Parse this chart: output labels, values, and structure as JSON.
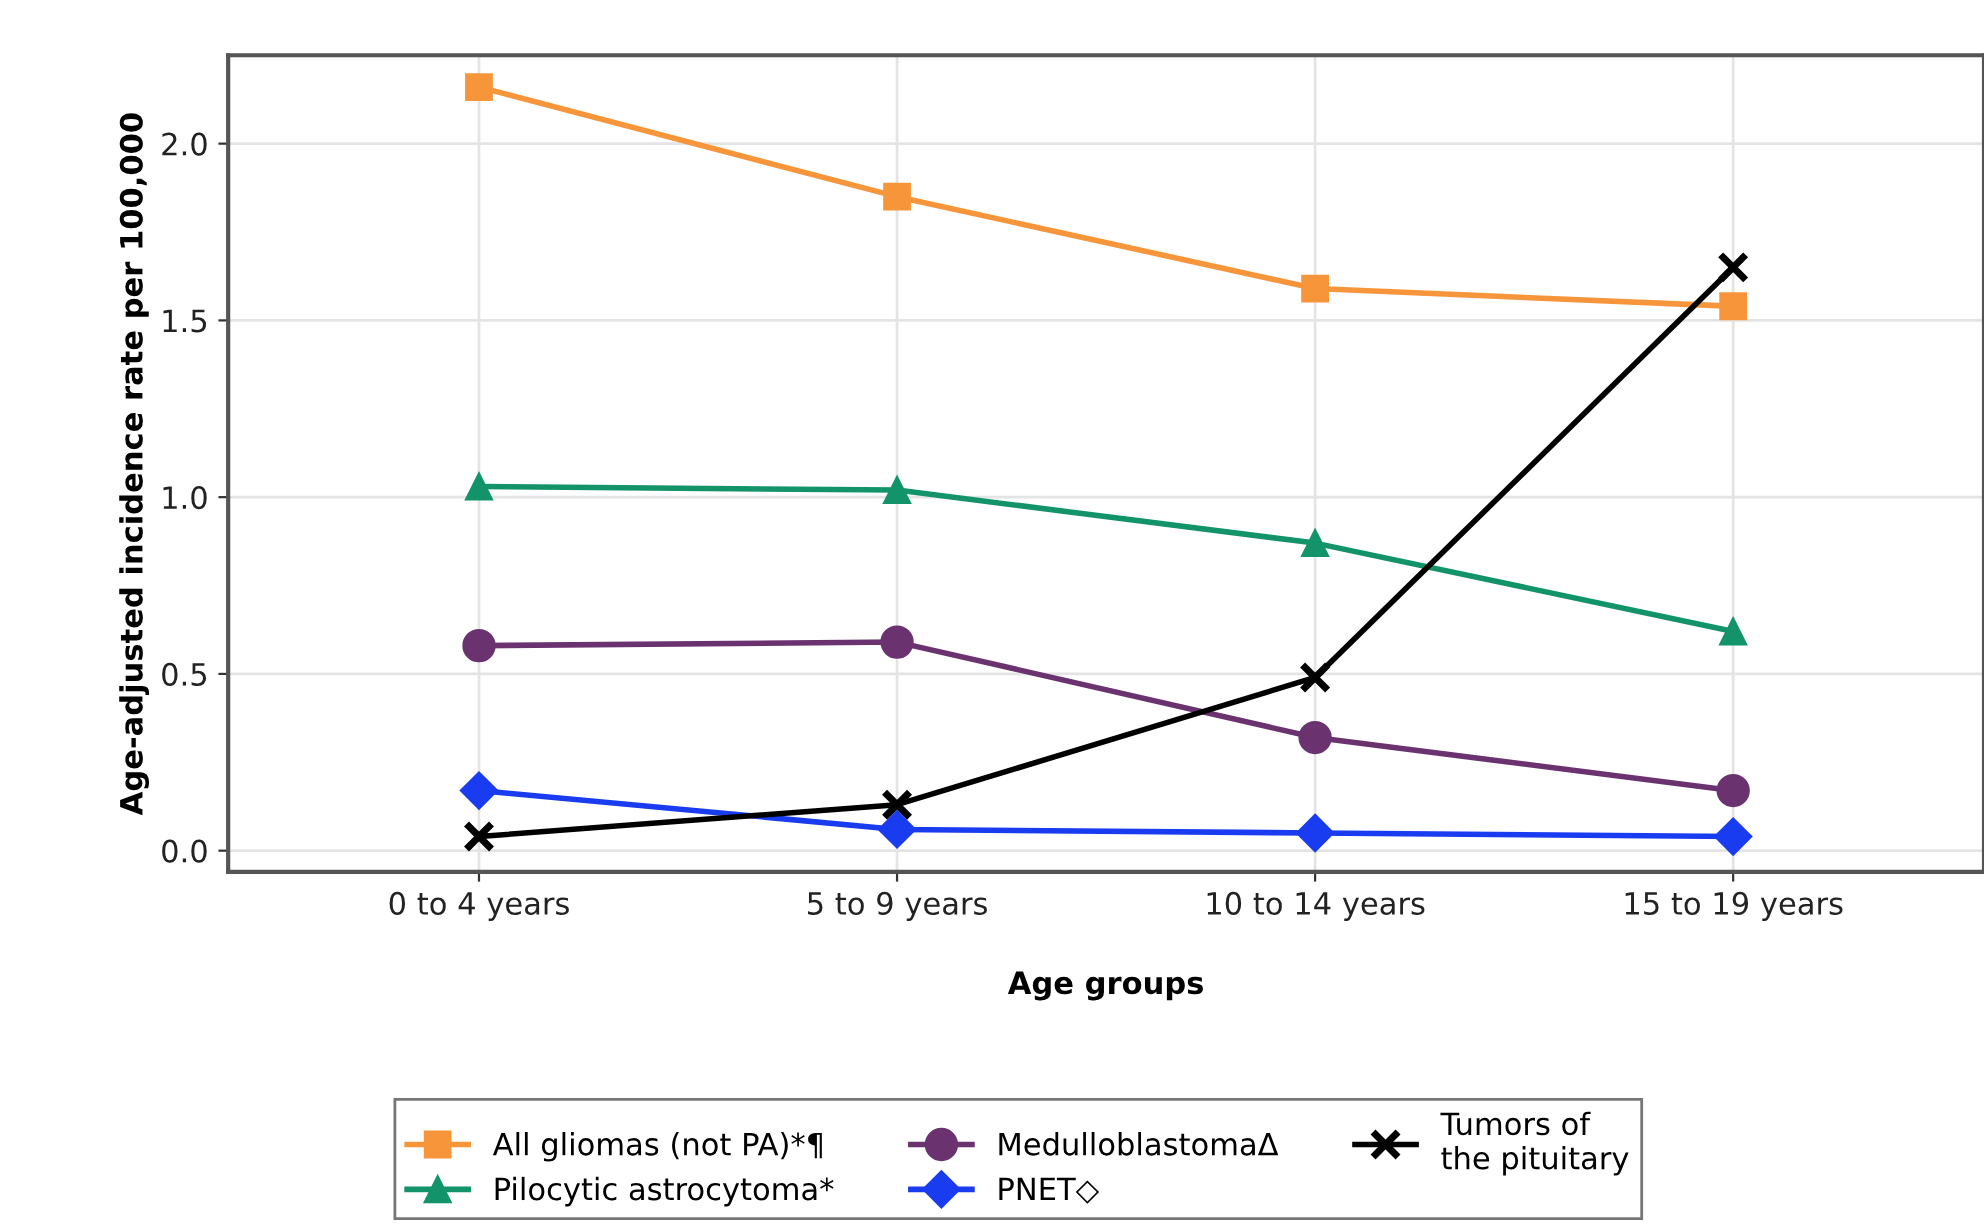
{
  "chart_data": {
    "type": "line",
    "xlabel": "Age groups",
    "ylabel": "Age-adjusted incidence rate per 100,000",
    "categories": [
      "0 to 4 years",
      "5 to 9 years",
      "10 to 14 years",
      "15 to 19 years"
    ],
    "series": [
      {
        "name": "All gliomas (not PA)*¶",
        "color": "#f7953b",
        "marker": "square",
        "values": [
          2.16,
          1.85,
          1.59,
          1.54
        ]
      },
      {
        "name": "Pilocytic astrocytoma*",
        "color": "#13936a",
        "marker": "triangle",
        "values": [
          1.03,
          1.02,
          0.87,
          0.62
        ]
      },
      {
        "name": "MedulloblastomaΔ",
        "color": "#6a3370",
        "marker": "circle",
        "values": [
          0.58,
          0.59,
          0.32,
          0.17
        ]
      },
      {
        "name": "PNET◇",
        "color": "#1a3cf0",
        "marker": "diamond",
        "values": [
          0.17,
          0.06,
          0.05,
          0.04
        ]
      },
      {
        "name": "Tumors of\nthe pituitary",
        "color": "#000000",
        "marker": "cross",
        "values": [
          0.04,
          0.13,
          0.49,
          1.65
        ]
      }
    ],
    "ylim": [
      -0.06,
      2.25
    ],
    "yticks": [
      {
        "value": 0,
        "label": "0.0"
      },
      {
        "value": 0.5,
        "label": "0.5"
      },
      {
        "value": 1,
        "label": "1.0"
      },
      {
        "value": 1.5,
        "label": "1.5"
      },
      {
        "value": 2,
        "label": "2.0"
      }
    ],
    "grid": true,
    "legend": "bottom",
    "line_style": "solid"
  }
}
